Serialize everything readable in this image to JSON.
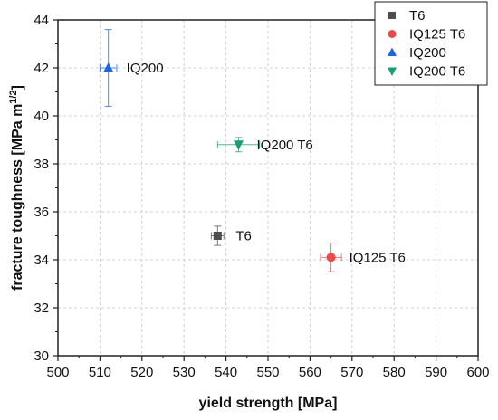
{
  "chart_data": {
    "type": "scatter",
    "xlabel": "yield strength [MPa]",
    "ylabel": "fracture toughness [MPa m",
    "ylabel_sup": "1/2",
    "ylabel_end": "]",
    "xlim": [
      500,
      600
    ],
    "ylim": [
      30,
      44
    ],
    "x_ticks": [
      "500",
      "510",
      "520",
      "530",
      "540",
      "550",
      "560",
      "570",
      "580",
      "590",
      "600"
    ],
    "y_ticks": [
      "30",
      "32",
      "34",
      "36",
      "38",
      "40",
      "42",
      "44"
    ],
    "grid": true,
    "legend_position": "top-right",
    "series": [
      {
        "name": "T6",
        "marker": "square",
        "color": "#4d4d4d",
        "x": 538,
        "y": 35.0,
        "xerr": 1.5,
        "yerr": 0.4,
        "label": "T6"
      },
      {
        "name": "IQ125 T6",
        "marker": "circle",
        "color": "#f04848",
        "x": 565,
        "y": 34.1,
        "xerr": 2.5,
        "yerr": 0.6,
        "label": "IQ125 T6"
      },
      {
        "name": "IQ200",
        "marker": "triangle-up",
        "color": "#1a66e0",
        "x": 512,
        "y": 42.0,
        "xerr": 2.0,
        "yerr": 1.6,
        "label": "IQ200"
      },
      {
        "name": "IQ200 T6",
        "marker": "triangle-down",
        "color": "#1a9e73",
        "x": 543,
        "y": 38.8,
        "xerr": 5.0,
        "yerr": 0.3,
        "label": "IQ200 T6"
      }
    ]
  }
}
